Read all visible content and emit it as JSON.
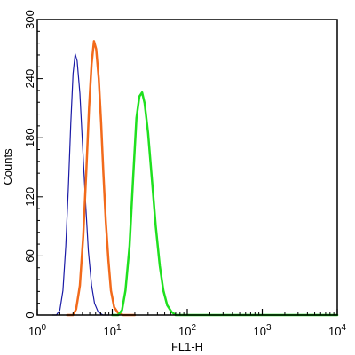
{
  "chart_data": {
    "type": "line",
    "title": "",
    "xlabel": "FL1-H",
    "ylabel": "Counts",
    "xscale": "log",
    "xlim": [
      1,
      10000
    ],
    "ylim": [
      0,
      300
    ],
    "grid": false,
    "x_ticks": [
      {
        "value": 1,
        "base": "10",
        "exp": "0"
      },
      {
        "value": 10,
        "base": "10",
        "exp": "1"
      },
      {
        "value": 100,
        "base": "10",
        "exp": "2"
      },
      {
        "value": 1000,
        "base": "10",
        "exp": "3"
      },
      {
        "value": 10000,
        "base": "10",
        "exp": "4"
      }
    ],
    "y_ticks": [
      {
        "value": 0,
        "label": "0"
      },
      {
        "value": 60,
        "label": "60"
      },
      {
        "value": 120,
        "label": "120"
      },
      {
        "value": 180,
        "label": "180"
      },
      {
        "value": 240,
        "label": "240"
      },
      {
        "value": 300,
        "label": "300"
      }
    ],
    "series": [
      {
        "color": "#1a1aa6",
        "stroke_width": 1.2,
        "points": [
          [
            1.6,
            0
          ],
          [
            1.8,
            0
          ],
          [
            2.0,
            5
          ],
          [
            2.2,
            25
          ],
          [
            2.4,
            70
          ],
          [
            2.6,
            130
          ],
          [
            2.8,
            195
          ],
          [
            3.0,
            245
          ],
          [
            3.2,
            265
          ],
          [
            3.4,
            258
          ],
          [
            3.7,
            225
          ],
          [
            4.0,
            175
          ],
          [
            4.4,
            115
          ],
          [
            4.8,
            65
          ],
          [
            5.3,
            30
          ],
          [
            5.8,
            12
          ],
          [
            6.5,
            3
          ],
          [
            7.5,
            0
          ],
          [
            9.0,
            0
          ]
        ]
      },
      {
        "color": "#f26a1b",
        "stroke_width": 2.5,
        "points": [
          [
            2.5,
            0
          ],
          [
            3.0,
            0
          ],
          [
            3.3,
            6
          ],
          [
            3.7,
            30
          ],
          [
            4.1,
            80
          ],
          [
            4.5,
            145
          ],
          [
            4.9,
            210
          ],
          [
            5.3,
            255
          ],
          [
            5.7,
            278
          ],
          [
            6.1,
            270
          ],
          [
            6.6,
            240
          ],
          [
            7.1,
            195
          ],
          [
            7.6,
            145
          ],
          [
            8.2,
            95
          ],
          [
            8.9,
            55
          ],
          [
            9.6,
            25
          ],
          [
            10.6,
            8
          ],
          [
            12.0,
            2
          ],
          [
            14.0,
            0
          ],
          [
            20.0,
            0
          ]
        ]
      },
      {
        "color": "#1fe01f",
        "stroke_width": 2.5,
        "points": [
          [
            10,
            0
          ],
          [
            12,
            0
          ],
          [
            13.5,
            5
          ],
          [
            15,
            25
          ],
          [
            17,
            70
          ],
          [
            19,
            140
          ],
          [
            21,
            200
          ],
          [
            23,
            222
          ],
          [
            25,
            226
          ],
          [
            27,
            215
          ],
          [
            30,
            185
          ],
          [
            34,
            135
          ],
          [
            38,
            90
          ],
          [
            43,
            50
          ],
          [
            48,
            25
          ],
          [
            54,
            10
          ],
          [
            62,
            3
          ],
          [
            70,
            0
          ],
          [
            100,
            0
          ],
          [
            1000,
            0
          ],
          [
            10000,
            0
          ]
        ]
      }
    ]
  }
}
